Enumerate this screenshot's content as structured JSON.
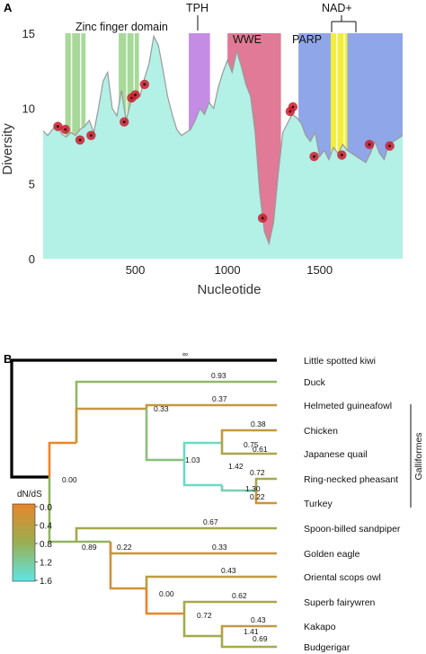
{
  "panel_a": {
    "letter": "A",
    "xlabel": "Nucleotide",
    "ylabel": "Diversity",
    "domains": {
      "zinc_finger": "Zinc finger domain",
      "tph": "TPH",
      "wwe": "WWE",
      "parp": "PARP",
      "nad": "NAD+"
    },
    "colors": {
      "fill": "#b3f0e6",
      "line": "#9a9a9a",
      "zinc": "#a8d99a",
      "tph": "#c58ce6",
      "wwe": "#e07a96",
      "parp": "#8fa6e8",
      "nad": "#f2ee3a",
      "point": "#c81e2e"
    }
  },
  "panel_b": {
    "letter": "B",
    "legend_title": "dN/dS",
    "legend_ticks": [
      "0.0",
      "0.4",
      "0.8",
      "1.2",
      "1.6"
    ],
    "clade_label": "Galliformes",
    "taxa": [
      "Little spotted kiwi",
      "Duck",
      "Helmeted guineafowl",
      "Chicken",
      "Japanese quail",
      "Ring-necked pheasant",
      "Turkey",
      "Spoon-billed sandpiper",
      "Golden eagle",
      "Oriental scops owl",
      "Superb fairywren",
      "Kakapo",
      "Budgerigar"
    ],
    "branch_labels": [
      "∞",
      "0.93",
      "0.33",
      "0.37",
      "1.03",
      "0.38",
      "0.75",
      "0.61",
      "1.42",
      "0.72",
      "1.30",
      "0.22",
      "0.00",
      "0.67",
      "0.89",
      "0.33",
      "0.22",
      "0.43",
      "0.00",
      "0.62",
      "0.72",
      "0.43",
      "1.41",
      "0.69"
    ]
  },
  "chart_data": [
    {
      "type": "area",
      "xlabel": "Nucleotide",
      "ylabel": "Diversity",
      "xlim": [
        0,
        1950
      ],
      "ylim": [
        0,
        15
      ],
      "xticks": [
        500,
        1000,
        1500
      ],
      "yticks": [
        0,
        5,
        10,
        15
      ],
      "grid": false,
      "x": [
        0,
        25,
        50,
        75,
        100,
        125,
        150,
        175,
        200,
        225,
        250,
        275,
        300,
        325,
        350,
        375,
        400,
        425,
        450,
        475,
        500,
        525,
        550,
        575,
        600,
        625,
        650,
        675,
        700,
        725,
        750,
        775,
        800,
        825,
        850,
        875,
        900,
        925,
        950,
        975,
        1000,
        1025,
        1050,
        1075,
        1100,
        1125,
        1150,
        1175,
        1200,
        1225,
        1250,
        1275,
        1300,
        1325,
        1350,
        1375,
        1400,
        1425,
        1450,
        1475,
        1500,
        1525,
        1550,
        1575,
        1600,
        1625,
        1650,
        1675,
        1700,
        1725,
        1750,
        1775,
        1800,
        1825,
        1850,
        1875,
        1900,
        1925,
        1950
      ],
      "y": [
        8.5,
        8.2,
        8.6,
        8.9,
        8.3,
        8.1,
        8.4,
        8.2,
        8.6,
        8.8,
        9.2,
        8.4,
        10.0,
        11.8,
        12.4,
        10.0,
        9.5,
        11.2,
        9.2,
        10.4,
        11.0,
        10.8,
        12.0,
        13.0,
        14.8,
        14.2,
        12.6,
        10.8,
        9.6,
        8.6,
        8.2,
        8.4,
        8.6,
        9.2,
        10.0,
        9.6,
        10.4,
        10.0,
        11.4,
        12.4,
        13.2,
        12.4,
        13.8,
        12.8,
        11.6,
        10.8,
        8.4,
        4.4,
        1.8,
        1.0,
        2.4,
        5.6,
        8.4,
        9.0,
        9.6,
        9.4,
        9.0,
        8.2,
        7.8,
        8.4,
        6.8,
        7.2,
        6.6,
        7.4,
        7.0,
        7.6,
        7.2,
        7.0,
        6.8,
        6.6,
        6.4,
        7.0,
        7.8,
        7.0,
        6.6,
        7.6,
        7.8,
        8.0,
        8.2
      ],
      "domains": [
        {
          "label": "Zinc finger domain",
          "ranges": [
            [
              120,
              230
            ],
            [
              410,
              520
            ]
          ]
        },
        {
          "label": "TPH",
          "ranges": [
            [
              790,
              905
            ]
          ]
        },
        {
          "label": "WWE",
          "ranges": [
            [
              1000,
              1290
            ]
          ]
        },
        {
          "label": "PARP",
          "ranges": [
            [
              1385,
              1950
            ]
          ]
        },
        {
          "label": "NAD+",
          "ranges": [
            [
              1560,
              1650
            ]
          ]
        }
      ],
      "highlighted_sites": {
        "x": [
          80,
          120,
          200,
          260,
          440,
          480,
          500,
          550,
          1190,
          1340,
          1355,
          1470,
          1620,
          1770,
          1880
        ],
        "y": [
          8.8,
          8.6,
          7.9,
          8.2,
          9.1,
          10.7,
          10.9,
          11.6,
          2.7,
          9.8,
          10.1,
          6.8,
          6.9,
          7.6,
          7.5
        ]
      }
    },
    {
      "type": "tree",
      "legend": "dN/dS",
      "colorbar": {
        "min": 0.0,
        "max": 1.6,
        "ticks": [
          0.0,
          0.4,
          0.8,
          1.2,
          1.6
        ],
        "low_color": "#e8862a",
        "mid_color": "#9aae52",
        "high_color": "#5ee6e6"
      },
      "leaves": [
        "Little spotted kiwi",
        "Duck",
        "Helmeted guineafowl",
        "Chicken",
        "Japanese quail",
        "Ring-necked pheasant",
        "Turkey",
        "Spoon-billed sandpiper",
        "Golden eagle",
        "Oriental scops owl",
        "Superb fairywren",
        "Kakapo",
        "Budgerigar"
      ],
      "clades": [
        {
          "label": "Galliformes",
          "members": [
            "Helmeted guineafowl",
            "Chicken",
            "Japanese quail",
            "Ring-necked pheasant",
            "Turkey"
          ]
        }
      ],
      "branches": [
        {
          "to": "Little spotted kiwi",
          "dnds_label": "∞"
        },
        {
          "to": "Duck",
          "dnds": 0.93
        },
        {
          "to": "Duck+Galliformes",
          "dnds": 0.33
        },
        {
          "to": "Helmeted guineafowl",
          "dnds": 0.37
        },
        {
          "to": "Galliformes (core)",
          "dnds": 1.03
        },
        {
          "to": "Chicken",
          "dnds": 0.38
        },
        {
          "to": "Japanese quail",
          "dnds": 0.61
        },
        {
          "to": "Chicken+Japanese quail",
          "dnds": 0.75
        },
        {
          "to": "Chicken+quail+pheasant+turkey",
          "dnds": 1.42
        },
        {
          "to": "Ring-necked pheasant",
          "dnds": 0.72
        },
        {
          "to": "Ring-necked pheasant+Turkey",
          "dnds": 1.3
        },
        {
          "to": "Turkey",
          "dnds": 0.22
        },
        {
          "to": "Neognathae",
          "dnds": 0.0
        },
        {
          "to": "Spoon-billed sandpiper",
          "dnds": 0.67
        },
        {
          "to": "Neoaves",
          "dnds": 0.89
        },
        {
          "to": "Golden eagle",
          "dnds": 0.33
        },
        {
          "to": "Eagle+owl+passerine clade",
          "dnds": 0.22
        },
        {
          "to": "Oriental scops owl",
          "dnds": 0.43
        },
        {
          "to": "Owl+Australaves",
          "dnds": 0.0
        },
        {
          "to": "Superb fairywren",
          "dnds": 0.62
        },
        {
          "to": "Australaves",
          "dnds": 0.72
        },
        {
          "to": "Kakapo",
          "dnds": 0.43
        },
        {
          "to": "Kakapo+Budgerigar",
          "dnds": 1.41
        },
        {
          "to": "Budgerigar",
          "dnds": 0.69
        }
      ]
    }
  ]
}
